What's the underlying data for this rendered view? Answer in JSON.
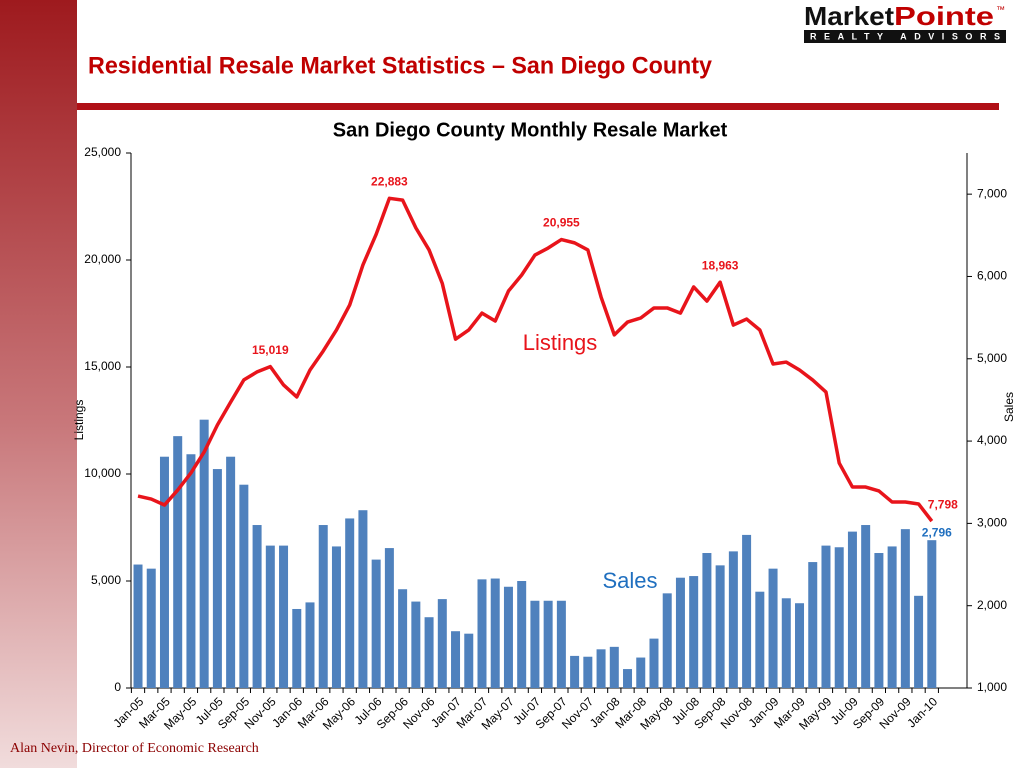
{
  "slide": {
    "title": "Residential Resale Market Statistics – San Diego County",
    "logo": {
      "name_part1": "Market",
      "name_part2": "Pointe",
      "mark": "™",
      "tagline": "REALTY ADVISORS"
    },
    "footer": "Alan Nevin, Director of Economic Research"
  },
  "chart_data": {
    "type": "combo",
    "title": "San Diego County Monthly Resale Market",
    "y_label": "Listings",
    "y2_label": "Sales",
    "categories": [
      "Jan-05",
      null,
      "Mar-05",
      null,
      "May-05",
      null,
      "Jul-05",
      null,
      "Sep-05",
      null,
      "Nov-05",
      null,
      "Jan-06",
      null,
      "Mar-06",
      null,
      "May-06",
      null,
      "Jul-06",
      null,
      "Sep-06",
      null,
      "Nov-06",
      null,
      "Jan-07",
      null,
      "Mar-07",
      null,
      "May-07",
      null,
      "Jul-07",
      null,
      "Sep-07",
      null,
      "Nov-07",
      null,
      "Jan-08",
      null,
      "Mar-08",
      null,
      "May-08",
      null,
      "Jul-08",
      null,
      "Sep-08",
      null,
      "Nov-08",
      null,
      "Jan-09",
      null,
      "Mar-09",
      null,
      "May-09",
      null,
      "Jul-09",
      null,
      "Sep-09",
      null,
      "Nov-09",
      null,
      "Jan-10"
    ],
    "series": [
      {
        "name": "Listings",
        "type": "line",
        "axis": "y",
        "color": "#e8141b",
        "values": [
          8970,
          8830,
          8550,
          9250,
          10050,
          11030,
          12290,
          13360,
          14400,
          14770,
          15019,
          14160,
          13600,
          14860,
          15750,
          16730,
          17900,
          19770,
          21200,
          22883,
          22800,
          21500,
          20470,
          18900,
          16300,
          16730,
          17520,
          17150,
          18550,
          19300,
          20230,
          20560,
          20955,
          20800,
          20470,
          18270,
          16500,
          17100,
          17290,
          17760,
          17760,
          17520,
          18740,
          18080,
          18963,
          16960,
          17240,
          16730,
          15140,
          15230,
          14860,
          14390,
          13830,
          10510,
          9390,
          9390,
          9210,
          8690,
          8690,
          8600,
          7798
        ],
        "value_labels": [
          null,
          null,
          null,
          null,
          null,
          null,
          null,
          null,
          null,
          null,
          "15,019",
          null,
          null,
          null,
          null,
          null,
          null,
          null,
          null,
          "22,883",
          null,
          null,
          null,
          null,
          null,
          null,
          null,
          null,
          null,
          null,
          null,
          null,
          "20,955",
          null,
          null,
          null,
          null,
          null,
          null,
          null,
          null,
          null,
          null,
          null,
          "18,963",
          null,
          null,
          null,
          null,
          null,
          null,
          null,
          null,
          null,
          null,
          null,
          null,
          null,
          null,
          null,
          "7,798"
        ]
      },
      {
        "name": "Sales",
        "type": "bar",
        "axis": "y2",
        "color": "#4f81bd",
        "label_color": "#1f6fbf",
        "values": [
          2500,
          2450,
          3810,
          4060,
          3840,
          4260,
          3660,
          3810,
          3470,
          2980,
          2730,
          2730,
          1960,
          2040,
          2980,
          2720,
          3060,
          3160,
          2560,
          2700,
          2200,
          2050,
          1860,
          2080,
          1690,
          1660,
          2320,
          2330,
          2230,
          2300,
          2060,
          2060,
          2060,
          1390,
          1380,
          1470,
          1500,
          1230,
          1370,
          1600,
          2150,
          2340,
          2360,
          2640,
          2490,
          2660,
          2860,
          2170,
          2450,
          2090,
          2030,
          2530,
          2730,
          2710,
          2900,
          2980,
          2640,
          2720,
          2930,
          2120,
          2796
        ],
        "value_labels": [
          null,
          null,
          null,
          null,
          null,
          null,
          null,
          null,
          null,
          null,
          null,
          null,
          null,
          null,
          null,
          null,
          null,
          null,
          null,
          null,
          null,
          null,
          null,
          null,
          null,
          null,
          null,
          null,
          null,
          null,
          null,
          null,
          null,
          null,
          null,
          null,
          null,
          null,
          null,
          null,
          null,
          null,
          null,
          null,
          null,
          null,
          null,
          null,
          null,
          null,
          null,
          null,
          null,
          null,
          null,
          null,
          null,
          null,
          null,
          null,
          "2,796"
        ]
      }
    ],
    "ylim": [
      0,
      25000
    ],
    "yticks": [
      0,
      {
        "value": 5000,
        "label": "5,000"
      },
      {
        "value": 10000,
        "label": "10,000"
      },
      {
        "value": 15000,
        "label": "15,000"
      },
      {
        "value": 20000,
        "label": "20,000"
      },
      {
        "value": 25000,
        "label": "25,000"
      }
    ],
    "y2lim": [
      1000,
      7500
    ],
    "y2ticks": [
      {
        "value": 1000,
        "label": "1,000"
      },
      {
        "value": 2000,
        "label": "2,000"
      },
      {
        "value": 3000,
        "label": "3,000"
      },
      {
        "value": 4000,
        "label": "4,000"
      },
      {
        "value": 5000,
        "label": "5,000"
      },
      {
        "value": 6000,
        "label": "6,000"
      },
      {
        "value": 7000,
        "label": "7,000"
      }
    ],
    "grid": false
  }
}
